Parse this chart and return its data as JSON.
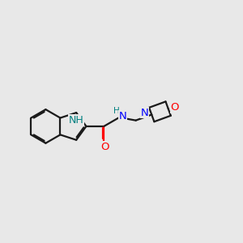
{
  "bg_color": "#e8e8e8",
  "bond_color": "#1a1a1a",
  "nitrogen_color": "#0000ff",
  "oxygen_color": "#ff0000",
  "nh_indole_color": "#008080",
  "nh_amide_color": "#008080",
  "lw": 1.6,
  "dbo": 0.055,
  "fs": 9.0,
  "xlim": [
    0,
    10
  ],
  "ylim": [
    1,
    7.5
  ]
}
